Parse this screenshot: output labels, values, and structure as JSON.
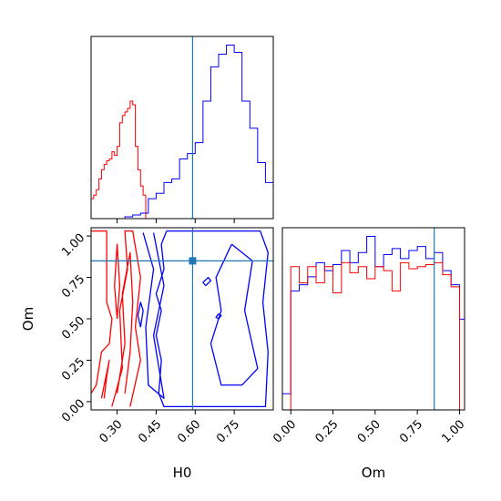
{
  "chart_data": {
    "type": "corner",
    "parameters": [
      "H0",
      "Om"
    ],
    "truths": {
      "H0": 0.59,
      "Om": 0.85
    },
    "truth_color": "#1f77b4",
    "series": [
      {
        "color": "#ff0000"
      },
      {
        "color": "#0000ff"
      }
    ],
    "panels": [
      {
        "id": "h0-marginal",
        "type": "histogram",
        "xlim": [
          0.2,
          0.9
        ],
        "x_ticks": [
          0.3,
          0.45,
          0.6,
          0.75
        ],
        "hist": [
          {
            "series": 0,
            "edges": [
              0.2,
              0.21,
              0.22,
              0.23,
              0.24,
              0.25,
              0.26,
              0.27,
              0.28,
              0.29,
              0.3,
              0.31,
              0.32,
              0.33,
              0.34,
              0.35,
              0.36,
              0.37,
              0.38,
              0.39,
              0.4,
              0.41
            ],
            "values": [
              0.11,
              0.13,
              0.16,
              0.22,
              0.27,
              0.3,
              0.32,
              0.33,
              0.37,
              0.35,
              0.4,
              0.53,
              0.57,
              0.59,
              0.61,
              0.65,
              0.63,
              0.4,
              0.27,
              0.18,
              0.13
            ]
          },
          {
            "series": 1,
            "edges": [
              0.33,
              0.36,
              0.39,
              0.42,
              0.45,
              0.48,
              0.51,
              0.54,
              0.57,
              0.6,
              0.63,
              0.66,
              0.69,
              0.72,
              0.75,
              0.78,
              0.81,
              0.84,
              0.87,
              0.9
            ],
            "values": [
              0.01,
              0.02,
              0.03,
              0.11,
              0.14,
              0.2,
              0.22,
              0.33,
              0.36,
              0.42,
              0.65,
              0.84,
              0.91,
              0.96,
              0.92,
              0.65,
              0.5,
              0.31,
              0.2
            ]
          }
        ]
      },
      {
        "id": "om-marginal",
        "type": "histogram",
        "xlim": [
          -0.05,
          1.03
        ],
        "x_ticks": [
          0.0,
          0.25,
          0.5,
          0.75,
          1.0
        ],
        "hist": [
          {
            "series": 1,
            "edges": [
              -0.05,
              0.0,
              0.05,
              0.1,
              0.15,
              0.2,
              0.25,
              0.3,
              0.35,
              0.4,
              0.45,
              0.5,
              0.55,
              0.6,
              0.65,
              0.7,
              0.75,
              0.8,
              0.85,
              0.9,
              0.95,
              1.0,
              1.03
            ],
            "values": [
              0.08,
              0.59,
              0.62,
              0.66,
              0.73,
              0.69,
              0.72,
              0.79,
              0.73,
              0.78,
              0.86,
              0.71,
              0.77,
              0.8,
              0.75,
              0.79,
              0.81,
              0.75,
              0.78,
              0.69,
              0.62,
              0.45
            ]
          },
          {
            "series": 0,
            "edges": [
              0.0,
              0.05,
              0.1,
              0.15,
              0.2,
              0.25,
              0.3,
              0.35,
              0.4,
              0.45,
              0.5,
              0.55,
              0.6,
              0.65,
              0.7,
              0.75,
              0.8,
              0.85,
              0.9,
              0.95,
              1.0
            ],
            "values": [
              0.71,
              0.63,
              0.71,
              0.63,
              0.71,
              0.58,
              0.73,
              0.68,
              0.71,
              0.65,
              0.71,
              0.69,
              0.59,
              0.73,
              0.7,
              0.71,
              0.72,
              0.73,
              0.67,
              0.61
            ]
          }
        ]
      },
      {
        "id": "h0-om-2d",
        "type": "contour",
        "xlim": [
          0.2,
          0.9
        ],
        "ylim": [
          -0.05,
          1.05
        ],
        "x_ticks": [
          0.3,
          0.45,
          0.6,
          0.75
        ],
        "y_ticks": [
          0.0,
          0.25,
          0.5,
          0.75,
          1.0
        ],
        "xlabel": "H0",
        "ylabel": "Om",
        "contours": [
          {
            "series": 0,
            "points": [
              [
                0.2,
                1.03
              ],
              [
                0.26,
                1.03
              ],
              [
                0.26,
                0.6
              ],
              [
                0.28,
                0.5
              ],
              [
                0.27,
                0.35
              ],
              [
                0.24,
                0.3
              ],
              [
                0.22,
                0.1
              ],
              [
                0.2,
                0.05
              ]
            ]
          },
          {
            "series": 0,
            "points": [
              [
                0.28,
                -0.03
              ],
              [
                0.32,
                0.2
              ],
              [
                0.31,
                0.55
              ],
              [
                0.34,
                0.8
              ],
              [
                0.33,
                1.03
              ],
              [
                0.36,
                1.03
              ],
              [
                0.39,
                0.75
              ],
              [
                0.37,
                0.45
              ],
              [
                0.39,
                0.25
              ],
              [
                0.35,
                -0.03
              ]
            ]
          },
          {
            "series": 0,
            "points": [
              [
                0.3,
                0.05
              ],
              [
                0.33,
                0.35
              ],
              [
                0.32,
                0.65
              ],
              [
                0.35,
                0.9
              ],
              [
                0.36,
                0.6
              ],
              [
                0.35,
                0.3
              ],
              [
                0.33,
                0.05
              ]
            ]
          },
          {
            "series": 0,
            "points": [
              [
                0.3,
                0.5
              ],
              [
                0.31,
                0.7
              ],
              [
                0.3,
                0.95
              ],
              [
                0.29,
                0.7
              ],
              [
                0.3,
                0.5
              ]
            ]
          },
          {
            "series": 0,
            "points": [
              [
                0.24,
                0.02
              ],
              [
                0.27,
                0.25
              ],
              [
                0.26,
                0.15
              ],
              [
                0.25,
                0.02
              ]
            ]
          },
          {
            "series": 1,
            "points": [
              [
                0.4,
                1.02
              ],
              [
                0.44,
                0.8
              ],
              [
                0.41,
                0.45
              ],
              [
                0.42,
                0.1
              ],
              [
                0.48,
                0.02
              ],
              [
                0.44,
                0.4
              ],
              [
                0.48,
                0.7
              ],
              [
                0.44,
                1.02
              ]
            ]
          },
          {
            "series": 1,
            "points": [
              [
                0.49,
                1.03
              ],
              [
                0.85,
                1.03
              ],
              [
                0.88,
                0.9
              ],
              [
                0.86,
                0.6
              ],
              [
                0.88,
                0.3
              ],
              [
                0.87,
                -0.03
              ],
              [
                0.48,
                -0.03
              ],
              [
                0.46,
                0.05
              ],
              [
                0.47,
                0.25
              ],
              [
                0.45,
                0.4
              ],
              [
                0.47,
                0.55
              ],
              [
                0.45,
                0.65
              ],
              [
                0.48,
                0.8
              ],
              [
                0.47,
                0.95
              ],
              [
                0.49,
                1.03
              ]
            ]
          },
          {
            "series": 1,
            "points": [
              [
                0.74,
                0.95
              ],
              [
                0.82,
                0.85
              ],
              [
                0.79,
                0.55
              ],
              [
                0.84,
                0.2
              ],
              [
                0.78,
                0.1
              ],
              [
                0.7,
                0.1
              ],
              [
                0.66,
                0.35
              ],
              [
                0.7,
                0.55
              ],
              [
                0.68,
                0.75
              ],
              [
                0.74,
                0.95
              ]
            ]
          },
          {
            "series": 1,
            "points": [
              [
                0.64,
                0.7
              ],
              [
                0.66,
                0.73
              ],
              [
                0.65,
                0.75
              ],
              [
                0.63,
                0.72
              ],
              [
                0.64,
                0.7
              ]
            ]
          },
          {
            "series": 1,
            "points": [
              [
                0.69,
                0.5
              ],
              [
                0.7,
                0.52
              ],
              [
                0.69,
                0.53
              ],
              [
                0.68,
                0.51
              ],
              [
                0.69,
                0.5
              ]
            ]
          },
          {
            "series": 1,
            "points": [
              [
                0.39,
                0.45
              ],
              [
                0.4,
                0.55
              ],
              [
                0.39,
                0.6
              ],
              [
                0.38,
                0.52
              ],
              [
                0.39,
                0.45
              ]
            ]
          }
        ]
      }
    ]
  }
}
